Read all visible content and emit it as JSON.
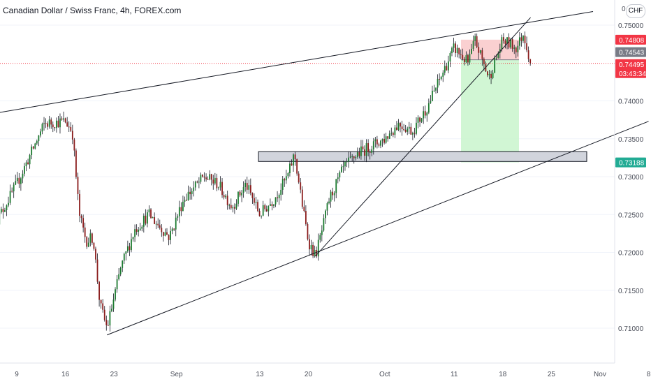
{
  "header": {
    "title": "Canadian Dollar / Swiss Franc, 4h, FOREX.com"
  },
  "currency_button": "CHF",
  "price_axis": {
    "top_tick": "0.7",
    "ticks": [
      "0.75000",
      "0.74000",
      "0.73500",
      "0.73000",
      "0.72500",
      "0.72000",
      "0.71500",
      "0.71000"
    ],
    "badges": [
      {
        "label": "0.74808",
        "bg": "#f23645"
      },
      {
        "label": "0.74543",
        "bg": "#787b86"
      },
      {
        "label": "0.74495",
        "bg": "#f23645"
      },
      {
        "label": "03:43:34",
        "bg": "#f23645"
      },
      {
        "label": "0.73188",
        "bg": "#22ab94"
      }
    ]
  },
  "time_axis": {
    "labels": [
      "9",
      "16",
      "23",
      "Sep",
      "13",
      "20",
      "Oct",
      "11",
      "18",
      "25",
      "Nov",
      "8"
    ]
  },
  "colors": {
    "up": "#26a69a",
    "down": "#ef5350",
    "candle_up_body": "#1b7a2f",
    "candle_down_body": "#8a1c1c",
    "stop_zone": "#f9c4c6",
    "target_zone": "#c9f5cd",
    "support_zone": "#d1d4dc"
  },
  "chart_data": {
    "type": "candlestick",
    "instrument": "CADCHF",
    "timeframe": "4h",
    "ylim": [
      0.709,
      0.752
    ],
    "close_path": [
      [
        "Aug 6",
        0.724
      ],
      [
        "Aug 9",
        0.729
      ],
      [
        "Aug 11",
        0.733
      ],
      [
        "Aug 13",
        0.737
      ],
      [
        "Aug 16",
        0.7373
      ],
      [
        "Aug 17",
        0.736
      ],
      [
        "Aug 18",
        0.725
      ],
      [
        "Aug 19",
        0.7215
      ],
      [
        "Aug 20",
        0.722
      ],
      [
        "Aug 21",
        0.713
      ],
      [
        "Aug 22",
        0.71
      ],
      [
        "Aug 24",
        0.718
      ],
      [
        "Aug 26",
        0.723
      ],
      [
        "Aug 28",
        0.725
      ],
      [
        "Aug 31",
        0.722
      ],
      [
        "Sep 2",
        0.727
      ],
      [
        "Sep 5",
        0.73
      ],
      [
        "Sep 7",
        0.729
      ],
      [
        "Sep 9",
        0.726
      ],
      [
        "Sep 11",
        0.729
      ],
      [
        "Sep 13",
        0.725
      ],
      [
        "Sep 15",
        0.727
      ],
      [
        "Sep 17",
        0.73
      ],
      [
        "Sep 18",
        0.733
      ],
      [
        "Sep 19",
        0.727
      ],
      [
        "Sep 20",
        0.7215
      ],
      [
        "Sep 21",
        0.7195
      ],
      [
        "Sep 22",
        0.723
      ],
      [
        "Sep 23",
        0.727
      ],
      [
        "Sep 25",
        0.731
      ],
      [
        "Sep 27",
        0.733
      ],
      [
        "Sep 29",
        0.734
      ],
      [
        "Oct 1",
        0.735
      ],
      [
        "Oct 3",
        0.737
      ],
      [
        "Oct 5",
        0.736
      ],
      [
        "Oct 7",
        0.739
      ],
      [
        "Oct 9",
        0.743
      ],
      [
        "Oct 11",
        0.747
      ],
      [
        "Oct 13",
        0.745
      ],
      [
        "Oct 14",
        0.748
      ],
      [
        "Oct 16",
        0.743
      ],
      [
        "Oct 18",
        0.748
      ],
      [
        "Oct 20",
        0.747
      ],
      [
        "Oct 21",
        0.749
      ],
      [
        "Oct 22",
        0.745
      ]
    ],
    "notable_points": {
      "swing_high_aug": 0.7385,
      "swing_low_aug": 0.7091,
      "swing_low_sep": 0.7183,
      "recent_high": 0.7498
    },
    "position": {
      "stop": 0.74808,
      "entry": 0.74543,
      "target": 0.73188
    },
    "last_price": 0.74495,
    "countdown": "03:43:34",
    "support_zone": [
      0.732,
      0.7333
    ],
    "trendlines": [
      {
        "name": "upper-channel",
        "from": [
          "Jul 30",
          0.7373
        ],
        "to": [
          "Oct 31",
          0.7518
        ]
      },
      {
        "name": "lower-channel",
        "from": [
          "Aug 22",
          0.7091
        ],
        "to": [
          "Nov 8",
          0.7373
        ]
      },
      {
        "name": "steep-uptrend",
        "from": [
          "Sep 21",
          0.7195
        ],
        "to": [
          "Oct 22",
          0.751
        ]
      }
    ]
  }
}
